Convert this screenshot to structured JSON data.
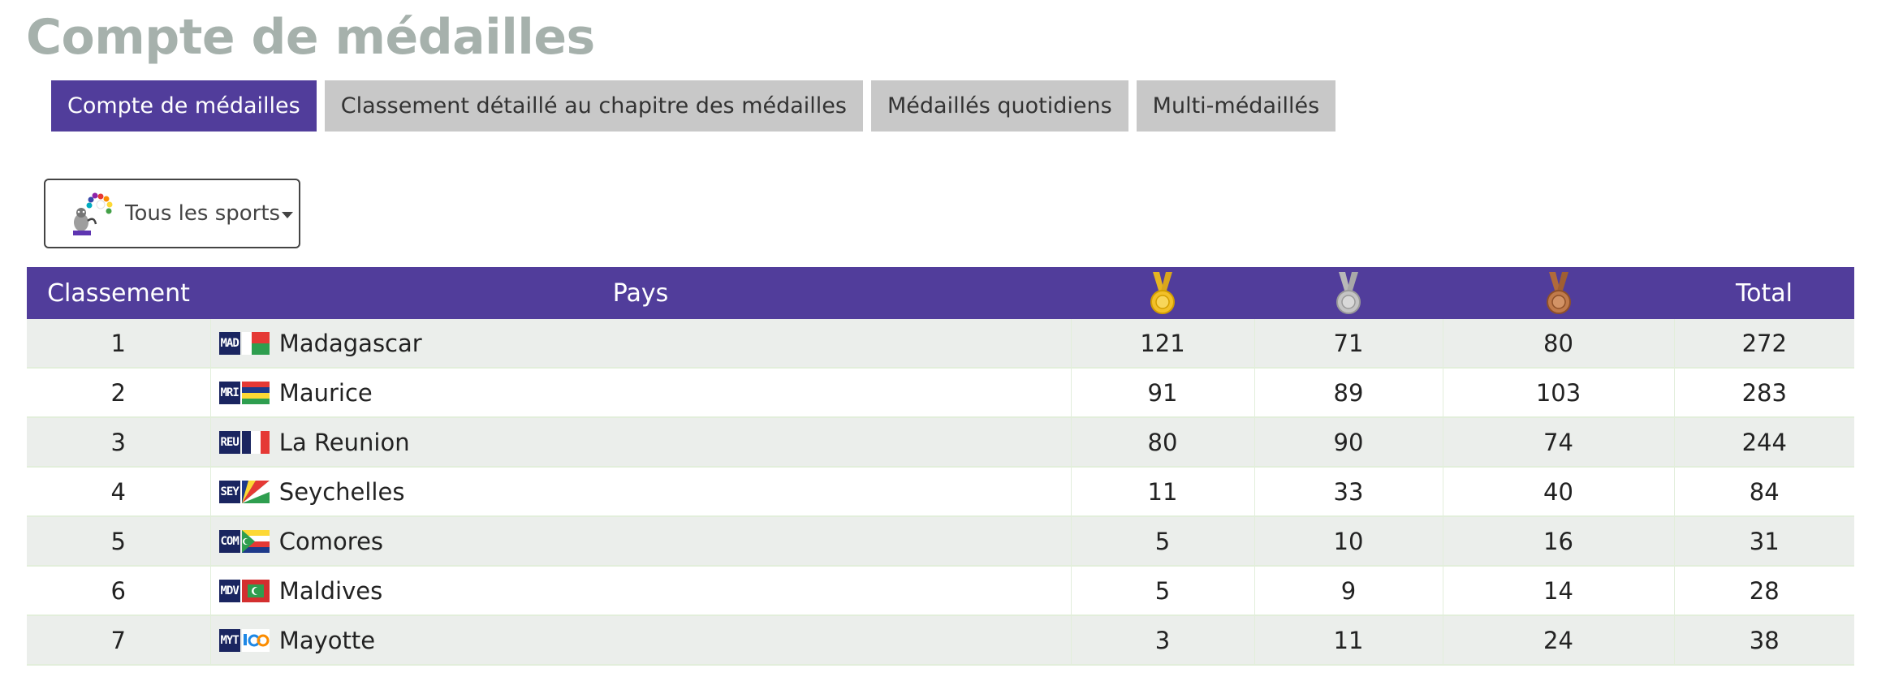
{
  "page": {
    "title": "Compte de médailles"
  },
  "tabs": [
    {
      "label": "Compte de médailles",
      "active": true
    },
    {
      "label": "Classement détaillé au chapitre des médailles",
      "active": false
    },
    {
      "label": "Médaillés quotidiens",
      "active": false
    },
    {
      "label": "Multi-médaillés",
      "active": false
    }
  ],
  "sport_filter": {
    "label": "Tous les sports",
    "icon": "games-mascot-logo-icon"
  },
  "table": {
    "headers": {
      "rank": "Classement",
      "country": "Pays",
      "gold_icon": "gold-medal-icon",
      "silver_icon": "silver-medal-icon",
      "bronze_icon": "bronze-medal-icon",
      "total": "Total"
    },
    "rows": [
      {
        "rank": "1",
        "code": "MAD",
        "country": "Madagascar",
        "gold": "121",
        "silver": "71",
        "bronze": "80",
        "total": "272"
      },
      {
        "rank": "2",
        "code": "MRI",
        "country": "Maurice",
        "gold": "91",
        "silver": "89",
        "bronze": "103",
        "total": "283"
      },
      {
        "rank": "3",
        "code": "REU",
        "country": "La Reunion",
        "gold": "80",
        "silver": "90",
        "bronze": "74",
        "total": "244"
      },
      {
        "rank": "4",
        "code": "SEY",
        "country": "Seychelles",
        "gold": "11",
        "silver": "33",
        "bronze": "40",
        "total": "84"
      },
      {
        "rank": "5",
        "code": "COM",
        "country": "Comores",
        "gold": "5",
        "silver": "10",
        "bronze": "16",
        "total": "31"
      },
      {
        "rank": "6",
        "code": "MDV",
        "country": "Maldives",
        "gold": "5",
        "silver": "9",
        "bronze": "14",
        "total": "28"
      },
      {
        "rank": "7",
        "code": "MYT",
        "country": "Mayotte",
        "gold": "3",
        "silver": "11",
        "bronze": "24",
        "total": "38"
      }
    ]
  },
  "colors": {
    "accent": "#513d9b",
    "title_gray": "#a6b1ac",
    "tab_inactive": "#c8c8c8",
    "row_stripe": "#ebeeeb",
    "gold": "#f2c029",
    "silver": "#c4c4c4",
    "bronze": "#c07a4a"
  }
}
